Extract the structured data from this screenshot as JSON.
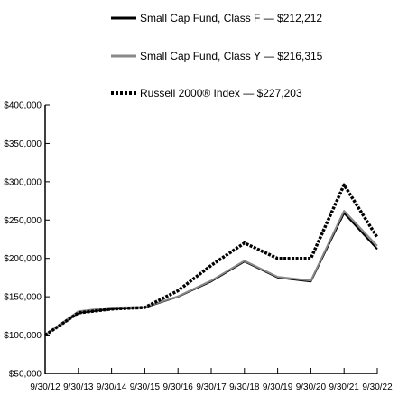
{
  "chart_data": {
    "type": "line",
    "x": [
      "9/30/12",
      "9/30/13",
      "9/30/14",
      "9/30/15",
      "9/30/16",
      "9/30/17",
      "9/30/18",
      "9/30/19",
      "9/30/20",
      "9/30/21",
      "9/30/22"
    ],
    "series": [
      {
        "name": "Small Cap Fund, Class F — $212,212",
        "color": "#000000",
        "style": "solid",
        "values": [
          100000,
          129000,
          134000,
          136000,
          150000,
          170000,
          196000,
          175000,
          170000,
          259000,
          212212
        ]
      },
      {
        "name": "Small Cap Fund, Class Y — $216,315",
        "color": "#888888",
        "style": "solid",
        "values": [
          100000,
          131000,
          136000,
          136500,
          150500,
          171000,
          197000,
          176000,
          171000,
          262000,
          216315
        ]
      },
      {
        "name": "Russell 2000® Index — $227,203",
        "color": "#000000",
        "style": "dotted",
        "values": [
          100000,
          129000,
          134000,
          136000,
          158000,
          191000,
          220000,
          200000,
          200000,
          296000,
          227203
        ]
      }
    ],
    "y_ticks": [
      "$50,000",
      "$100,000",
      "$150,000",
      "$200,000",
      "$250,000",
      "$300,000",
      "$350,000",
      "$400,000"
    ],
    "ylim": [
      50000,
      400000
    ],
    "legend_position": "top",
    "grid": false
  }
}
